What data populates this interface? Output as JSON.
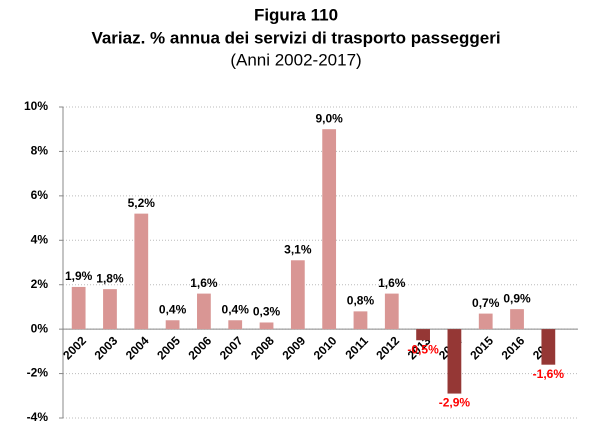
{
  "chart_data": {
    "type": "bar",
    "title": "Figura 110",
    "subtitle": "Variaz. % annua dei servizi di trasporto passeggeri",
    "note": "(Anni 2002-2017)",
    "categories": [
      "2002",
      "2003",
      "2004",
      "2005",
      "2006",
      "2007",
      "2008",
      "2009",
      "2010",
      "2011",
      "2012",
      "2013",
      "2014",
      "2015",
      "2016",
      "2017"
    ],
    "values": [
      1.9,
      1.8,
      5.2,
      0.4,
      1.6,
      0.4,
      0.3,
      3.1,
      9.0,
      0.8,
      1.6,
      -0.5,
      -2.9,
      0.7,
      0.9,
      -1.6
    ],
    "value_labels": [
      "1,9%",
      "1,8%",
      "5,2%",
      "0,4%",
      "1,6%",
      "0,4%",
      "0,3%",
      "3,1%",
      "9,0%",
      "0,8%",
      "1,6%",
      "-0,5%",
      "-2,9%",
      "0,7%",
      "0,9%",
      "-1,6%"
    ],
    "color": "#d99694",
    "negative_color": "#953735",
    "negative_label_color": "#ff0000",
    "ylim": [
      -4,
      10
    ],
    "yticks": [
      {
        "value": -4,
        "label": "-4%"
      },
      {
        "value": -2,
        "label": "-2%"
      },
      {
        "value": 0,
        "label": "0%"
      },
      {
        "value": 2,
        "label": "2%"
      },
      {
        "value": 4,
        "label": "4%"
      },
      {
        "value": 6,
        "label": "6%"
      },
      {
        "value": 8,
        "label": "8%"
      },
      {
        "value": 10,
        "label": "10%"
      }
    ],
    "grid": true
  }
}
